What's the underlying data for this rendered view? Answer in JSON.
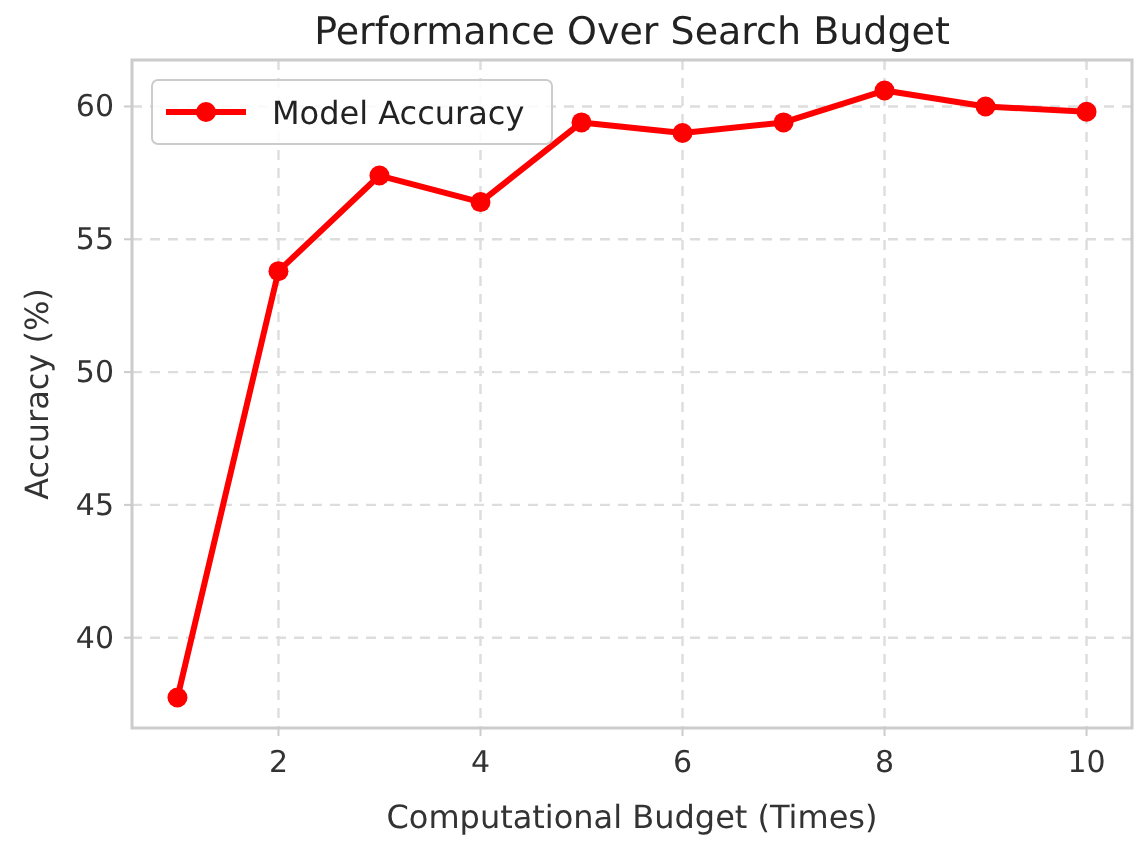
{
  "chart_data": {
    "type": "line",
    "title": "Performance Over Search Budget",
    "xlabel": "Computational Budget (Times)",
    "ylabel": "Accuracy (%)",
    "x": [
      1,
      2,
      3,
      4,
      5,
      6,
      7,
      8,
      9,
      10
    ],
    "series": [
      {
        "name": "Model Accuracy",
        "color": "#ff0000",
        "values": [
          37.75,
          53.8,
          57.4,
          56.4,
          59.4,
          59.0,
          59.4,
          60.6,
          60.0,
          59.8
        ]
      }
    ],
    "xlim": [
      0.55,
      10.45
    ],
    "xticks": [
      2,
      4,
      6,
      8,
      10
    ],
    "ylim": [
      36.6,
      61.75
    ],
    "yticks": [
      40,
      45,
      50,
      55,
      60
    ],
    "grid": true,
    "legend": "top left",
    "marker": "circle",
    "line_style": "solid"
  }
}
